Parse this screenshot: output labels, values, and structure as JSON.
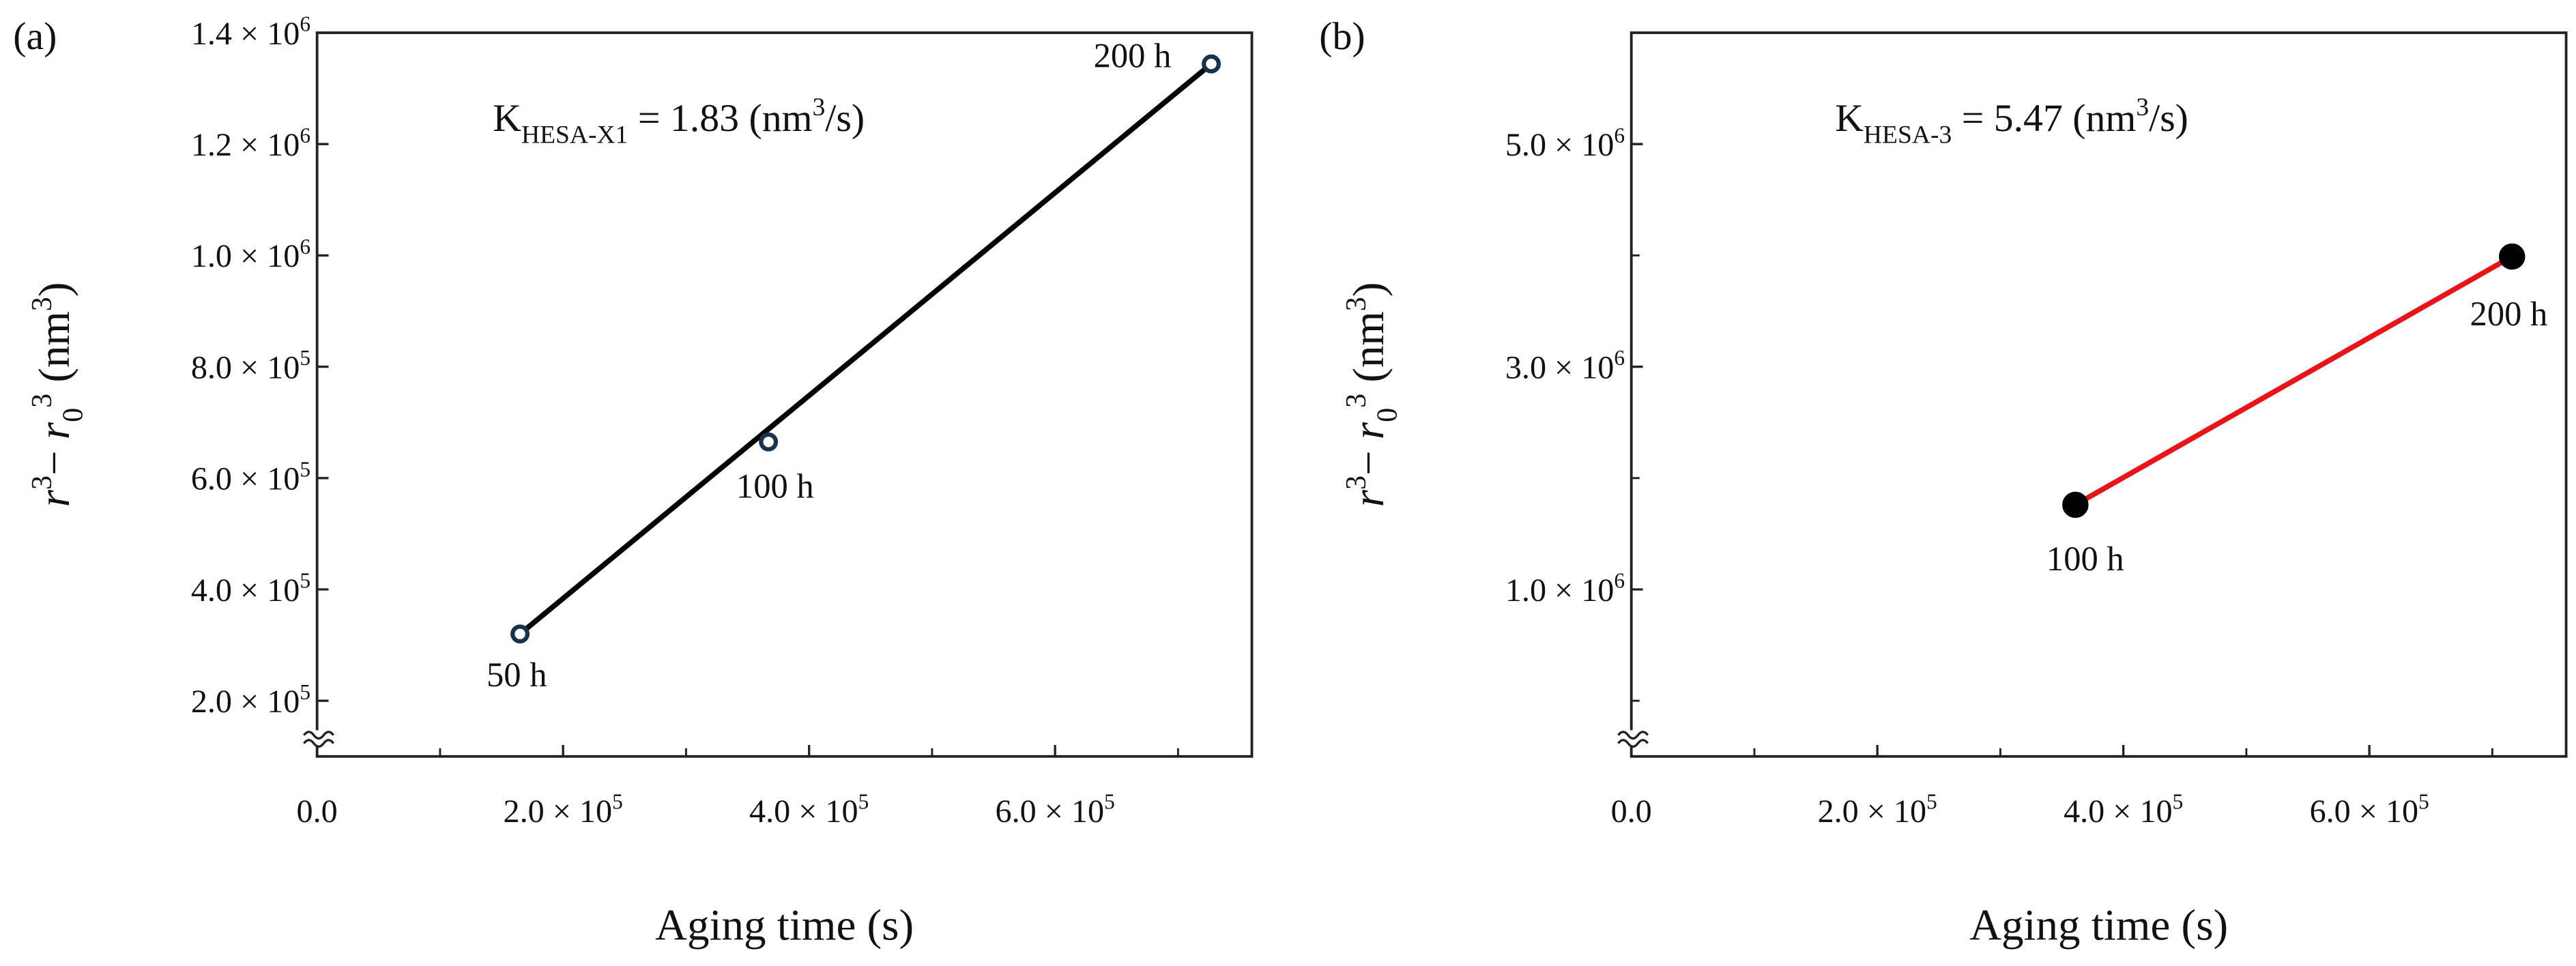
{
  "chart_data": [
    {
      "type": "scatter",
      "panel_label": "(a)",
      "x_label": "Aging time (s)",
      "y_label": [
        {
          "text": "r",
          "italic": true
        },
        {
          "text": "3",
          "pos": "sup"
        },
        {
          "text": "− "
        },
        {
          "text": "r",
          "italic": true
        },
        {
          "text": "0",
          "pos": "sub"
        },
        {
          "text": "3",
          "pos": "sup"
        },
        {
          "text": " (nm"
        },
        {
          "text": "3",
          "pos": "sup"
        },
        {
          "text": ")"
        }
      ],
      "annotation": [
        {
          "text": "K"
        },
        {
          "text": "HESA-X1",
          "pos": "sub"
        },
        {
          "text": " = 1.83 (nm"
        },
        {
          "text": "3",
          "pos": "sup"
        },
        {
          "text": "/s)"
        }
      ],
      "xlim": [
        0,
        760000
      ],
      "ylim": [
        100000,
        1400000
      ],
      "xticks": [
        {
          "value": 0,
          "label": "0.0"
        },
        {
          "value": 200000,
          "label": "2.0 × 10",
          "exp": "5"
        },
        {
          "value": 400000,
          "label": "4.0 × 10",
          "exp": "5"
        },
        {
          "value": 600000,
          "label": "6.0 × 10",
          "exp": "5"
        }
      ],
      "xminor": [
        100000,
        300000,
        500000,
        700000
      ],
      "yticks": [
        {
          "value": 200000,
          "label": "2.0 × 10",
          "exp": "5"
        },
        {
          "value": 400000,
          "label": "4.0 × 10",
          "exp": "5"
        },
        {
          "value": 600000,
          "label": "6.0 × 10",
          "exp": "5"
        },
        {
          "value": 800000,
          "label": "8.0 × 10",
          "exp": "5"
        },
        {
          "value": 1000000,
          "label": "1.0 × 10",
          "exp": "6"
        },
        {
          "value": 1200000,
          "label": "1.2 × 10",
          "exp": "6"
        },
        {
          "value": 1400000,
          "label": "1.4 × 10",
          "exp": "6"
        }
      ],
      "yminor": [],
      "series": [
        {
          "color": "#16324f",
          "marker": "open",
          "connect": false,
          "x": [
            165000,
            367000,
            727000
          ],
          "values": [
            320000,
            665000,
            1344000
          ],
          "point_labels": [
            "50 h",
            "100 h",
            "200 h"
          ]
        }
      ],
      "fit": {
        "color": "#000000",
        "x": [
          165000,
          727000
        ],
        "values": [
          320000,
          1344000
        ]
      }
    },
    {
      "type": "scatter",
      "panel_label": "(b)",
      "x_label": "Aging time (s)",
      "y_label": [
        {
          "text": "r",
          "italic": true
        },
        {
          "text": "3",
          "pos": "sup"
        },
        {
          "text": "− "
        },
        {
          "text": "r",
          "italic": true
        },
        {
          "text": "0",
          "pos": "sub"
        },
        {
          "text": "3",
          "pos": "sup"
        },
        {
          "text": " (nm"
        },
        {
          "text": "3",
          "pos": "sup"
        },
        {
          "text": ")"
        }
      ],
      "annotation": [
        {
          "text": "K"
        },
        {
          "text": "HESA-3",
          "pos": "sub"
        },
        {
          "text": " = 5.47 (nm"
        },
        {
          "text": "3",
          "pos": "sup"
        },
        {
          "text": "/s)"
        }
      ],
      "xlim": [
        0,
        760000
      ],
      "ylim": [
        -500000,
        6000000
      ],
      "xticks": [
        {
          "value": 0,
          "label": "0.0"
        },
        {
          "value": 200000,
          "label": "2.0 × 10",
          "exp": "5"
        },
        {
          "value": 400000,
          "label": "4.0 × 10",
          "exp": "5"
        },
        {
          "value": 600000,
          "label": "6.0 × 10",
          "exp": "5"
        }
      ],
      "xminor": [
        100000,
        300000,
        500000,
        700000
      ],
      "yticks": [
        {
          "value": 1000000,
          "label": "1.0 × 10",
          "exp": "6"
        },
        {
          "value": 3000000,
          "label": "3.0 × 10",
          "exp": "6"
        },
        {
          "value": 5000000,
          "label": "5.0 × 10",
          "exp": "6"
        }
      ],
      "yminor": [
        0,
        2000000,
        4000000
      ],
      "series": [
        {
          "color": "#000000",
          "line_color": "#e8141a",
          "marker": "filled",
          "connect": true,
          "x": [
            361000,
            716000
          ],
          "values": [
            1760000,
            3990000
          ],
          "point_labels": [
            "100 h",
            "200 h"
          ]
        }
      ]
    }
  ]
}
